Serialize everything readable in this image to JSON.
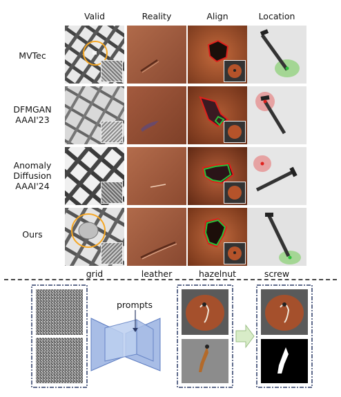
{
  "columns": [
    "Valid",
    "Reality",
    "Align",
    "Location"
  ],
  "rows": [
    {
      "label_lines": [
        "MVTec"
      ]
    },
    {
      "label_lines": [
        "DFMGAN",
        "AAAI'23"
      ]
    },
    {
      "label_lines": [
        "Anomaly",
        "Diffusion",
        "AAAI'24"
      ]
    },
    {
      "label_lines": [
        "Ours"
      ]
    }
  ],
  "categories": [
    "grid",
    "leather",
    "hazelnut",
    "screw"
  ],
  "pipeline": {
    "prompts_label": "prompts"
  },
  "colors": {
    "highlight_circle": "#f5a623",
    "mask_red": "#e0201c",
    "mask_green": "#2bbf3a",
    "location_red": "#e58585",
    "location_green": "#8fd27a",
    "box_border": "#2a3a66",
    "network": "#a8bde6",
    "arrow": "#d8ecc8"
  }
}
